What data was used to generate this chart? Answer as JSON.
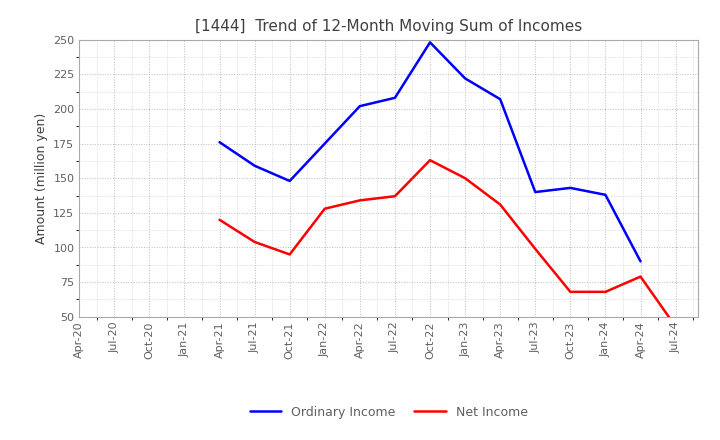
{
  "title": "[1444]  Trend of 12-Month Moving Sum of Incomes",
  "ylabel": "Amount (million yen)",
  "ylim": [
    50,
    250
  ],
  "yticks": [
    50,
    75,
    100,
    125,
    150,
    175,
    200,
    225,
    250
  ],
  "x_labels": [
    "Apr-20",
    "Jul-20",
    "Oct-20",
    "Jan-21",
    "Apr-21",
    "Jul-21",
    "Oct-21",
    "Jan-22",
    "Apr-22",
    "Jul-22",
    "Oct-22",
    "Jan-23",
    "Apr-23",
    "Jul-23",
    "Oct-23",
    "Jan-24",
    "Apr-24",
    "Jul-24"
  ],
  "ordinary_income": [
    null,
    null,
    null,
    null,
    176,
    159,
    148,
    175,
    202,
    208,
    248,
    222,
    207,
    140,
    143,
    138,
    90,
    null
  ],
  "net_income": [
    null,
    null,
    null,
    null,
    120,
    104,
    95,
    128,
    134,
    137,
    163,
    150,
    131,
    99,
    68,
    68,
    79,
    43
  ],
  "ordinary_color": "#0000FF",
  "net_color": "#FF0000",
  "background_color": "#FFFFFF",
  "grid_color": "#BBBBBB",
  "title_color": "#404040",
  "tick_color": "#606060",
  "line_width": 1.8,
  "legend_fontsize": 9,
  "title_fontsize": 11,
  "axis_fontsize": 9,
  "tick_fontsize": 8
}
